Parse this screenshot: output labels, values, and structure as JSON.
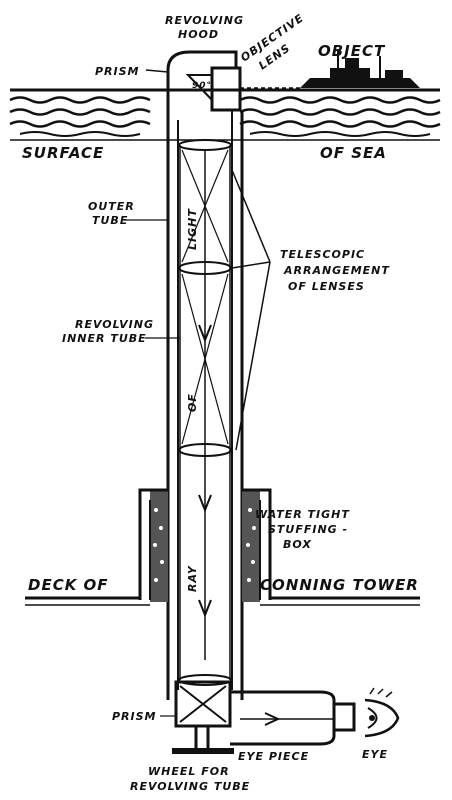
{
  "labels": {
    "revolving_hood_line1": "REVOLVING",
    "revolving_hood_line2": "HOOD",
    "prism_top": "PRISM",
    "objective_lens_line1": "OBJECTIVE",
    "objective_lens_line2": "LENS",
    "object": "OBJECT",
    "angle": "90°",
    "surface": "SURFACE",
    "of_sea": "OF SEA",
    "outer_tube_line1": "OUTER",
    "outer_tube_line2": "TUBE",
    "telescopic_line1": "TELESCOPIC",
    "telescopic_line2": "ARRANGEMENT",
    "telescopic_line3": "OF LENSES",
    "inner_tube_line1": "REVOLVING",
    "inner_tube_line2": "INNER TUBE",
    "ray_word1": "LIGHT",
    "ray_word2": "OF",
    "ray_word3": "RAY",
    "stuffing_line1": "WATER TIGHT",
    "stuffing_line2": "STUFFING -",
    "stuffing_line3": "BOX",
    "deck_of": "DECK OF",
    "conning_tower": "CONNING TOWER",
    "prism_bottom": "PRISM",
    "eye_piece": "EYE PIECE",
    "eye": "EYE",
    "wheel_line1": "WHEEL FOR",
    "wheel_line2": "REVOLVING TUBE"
  },
  "icons": [
    "eye-icon",
    "ship-icon",
    "arrow-icon"
  ],
  "colors": {
    "ink": "#111111",
    "paper": "#ffffff"
  }
}
